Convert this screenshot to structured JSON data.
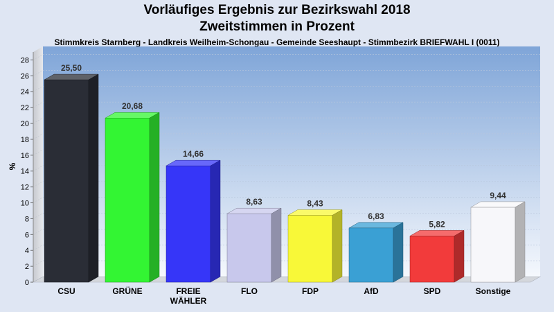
{
  "chart_data": {
    "type": "bar",
    "title": "Vorläufiges Ergebnis zur Bezirkswahl 2018",
    "subtitle": "Zweitstimmen in Prozent",
    "caption": "Stimmkreis Starnberg - Landkreis Weilheim-Schongau - Gemeinde Seeshaupt - Stimmbezirk BRIEFWAHL I (0011)",
    "ylabel": "%",
    "ylim": [
      0,
      29
    ],
    "yticks": [
      0,
      2,
      4,
      6,
      8,
      10,
      12,
      14,
      16,
      18,
      20,
      22,
      24,
      26,
      28
    ],
    "categories": [
      "CSU",
      "GRÜNE",
      "FREIE WÄHLER",
      "FLO",
      "FDP",
      "AfD",
      "SPD",
      "Sonstige"
    ],
    "values": [
      25.5,
      20.68,
      14.66,
      8.63,
      8.43,
      6.83,
      5.82,
      9.44
    ],
    "value_labels": [
      "25,50",
      "20,68",
      "14,66",
      "8,63",
      "8,43",
      "6,83",
      "5,82",
      "9,44"
    ],
    "colors": [
      "#2a2d36",
      "#33f533",
      "#3636f8",
      "#c8c8ec",
      "#f8f838",
      "#3aa0d4",
      "#f23b3b",
      "#f7f7fa"
    ],
    "grid": true,
    "legend": "none"
  }
}
